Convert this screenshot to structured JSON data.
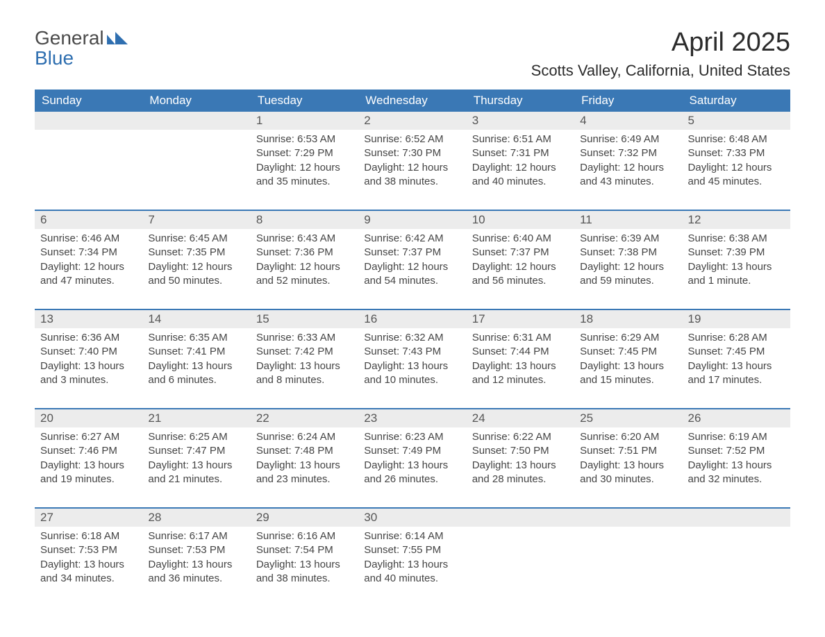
{
  "brand": {
    "line1": "General",
    "line2": "Blue",
    "mark_color": "#2f6fb0"
  },
  "title": "April 2025",
  "location": "Scotts Valley, California, United States",
  "colors": {
    "header_bg": "#3a78b5",
    "header_text": "#ffffff",
    "daynum_bg": "#ececec",
    "rule": "#3a78b5",
    "body_text": "#444444"
  },
  "day_headers": [
    "Sunday",
    "Monday",
    "Tuesday",
    "Wednesday",
    "Thursday",
    "Friday",
    "Saturday"
  ],
  "weeks": [
    [
      null,
      null,
      {
        "n": "1",
        "sr": "6:53 AM",
        "ss": "7:29 PM",
        "dl": "12 hours and 35 minutes."
      },
      {
        "n": "2",
        "sr": "6:52 AM",
        "ss": "7:30 PM",
        "dl": "12 hours and 38 minutes."
      },
      {
        "n": "3",
        "sr": "6:51 AM",
        "ss": "7:31 PM",
        "dl": "12 hours and 40 minutes."
      },
      {
        "n": "4",
        "sr": "6:49 AM",
        "ss": "7:32 PM",
        "dl": "12 hours and 43 minutes."
      },
      {
        "n": "5",
        "sr": "6:48 AM",
        "ss": "7:33 PM",
        "dl": "12 hours and 45 minutes."
      }
    ],
    [
      {
        "n": "6",
        "sr": "6:46 AM",
        "ss": "7:34 PM",
        "dl": "12 hours and 47 minutes."
      },
      {
        "n": "7",
        "sr": "6:45 AM",
        "ss": "7:35 PM",
        "dl": "12 hours and 50 minutes."
      },
      {
        "n": "8",
        "sr": "6:43 AM",
        "ss": "7:36 PM",
        "dl": "12 hours and 52 minutes."
      },
      {
        "n": "9",
        "sr": "6:42 AM",
        "ss": "7:37 PM",
        "dl": "12 hours and 54 minutes."
      },
      {
        "n": "10",
        "sr": "6:40 AM",
        "ss": "7:37 PM",
        "dl": "12 hours and 56 minutes."
      },
      {
        "n": "11",
        "sr": "6:39 AM",
        "ss": "7:38 PM",
        "dl": "12 hours and 59 minutes."
      },
      {
        "n": "12",
        "sr": "6:38 AM",
        "ss": "7:39 PM",
        "dl": "13 hours and 1 minute."
      }
    ],
    [
      {
        "n": "13",
        "sr": "6:36 AM",
        "ss": "7:40 PM",
        "dl": "13 hours and 3 minutes."
      },
      {
        "n": "14",
        "sr": "6:35 AM",
        "ss": "7:41 PM",
        "dl": "13 hours and 6 minutes."
      },
      {
        "n": "15",
        "sr": "6:33 AM",
        "ss": "7:42 PM",
        "dl": "13 hours and 8 minutes."
      },
      {
        "n": "16",
        "sr": "6:32 AM",
        "ss": "7:43 PM",
        "dl": "13 hours and 10 minutes."
      },
      {
        "n": "17",
        "sr": "6:31 AM",
        "ss": "7:44 PM",
        "dl": "13 hours and 12 minutes."
      },
      {
        "n": "18",
        "sr": "6:29 AM",
        "ss": "7:45 PM",
        "dl": "13 hours and 15 minutes."
      },
      {
        "n": "19",
        "sr": "6:28 AM",
        "ss": "7:45 PM",
        "dl": "13 hours and 17 minutes."
      }
    ],
    [
      {
        "n": "20",
        "sr": "6:27 AM",
        "ss": "7:46 PM",
        "dl": "13 hours and 19 minutes."
      },
      {
        "n": "21",
        "sr": "6:25 AM",
        "ss": "7:47 PM",
        "dl": "13 hours and 21 minutes."
      },
      {
        "n": "22",
        "sr": "6:24 AM",
        "ss": "7:48 PM",
        "dl": "13 hours and 23 minutes."
      },
      {
        "n": "23",
        "sr": "6:23 AM",
        "ss": "7:49 PM",
        "dl": "13 hours and 26 minutes."
      },
      {
        "n": "24",
        "sr": "6:22 AM",
        "ss": "7:50 PM",
        "dl": "13 hours and 28 minutes."
      },
      {
        "n": "25",
        "sr": "6:20 AM",
        "ss": "7:51 PM",
        "dl": "13 hours and 30 minutes."
      },
      {
        "n": "26",
        "sr": "6:19 AM",
        "ss": "7:52 PM",
        "dl": "13 hours and 32 minutes."
      }
    ],
    [
      {
        "n": "27",
        "sr": "6:18 AM",
        "ss": "7:53 PM",
        "dl": "13 hours and 34 minutes."
      },
      {
        "n": "28",
        "sr": "6:17 AM",
        "ss": "7:53 PM",
        "dl": "13 hours and 36 minutes."
      },
      {
        "n": "29",
        "sr": "6:16 AM",
        "ss": "7:54 PM",
        "dl": "13 hours and 38 minutes."
      },
      {
        "n": "30",
        "sr": "6:14 AM",
        "ss": "7:55 PM",
        "dl": "13 hours and 40 minutes."
      },
      null,
      null,
      null
    ]
  ],
  "labels": {
    "sunrise": "Sunrise: ",
    "sunset": "Sunset: ",
    "daylight": "Daylight: "
  }
}
